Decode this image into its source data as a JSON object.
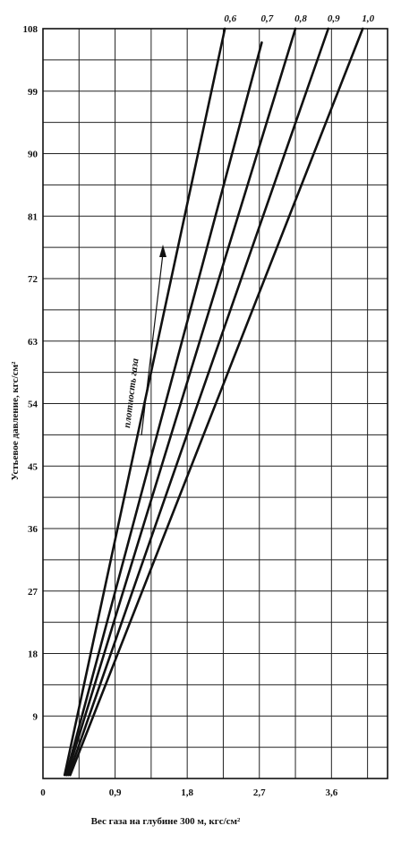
{
  "chart_data": {
    "type": "line",
    "title": "",
    "xlabel": "Вес  газа  на глубине 300 м, кгс/см²",
    "ylabel": "Устьевое давление, кгс/см²",
    "xlim": [
      0,
      4.3
    ],
    "ylim": [
      0,
      108
    ],
    "x_ticks": [
      "0",
      "0,9",
      "1,8",
      "2,7",
      "3,6"
    ],
    "x_tick_values": [
      0,
      0.9,
      1.8,
      2.7,
      3.6
    ],
    "y_ticks": [
      "9",
      "18",
      "27",
      "36",
      "45",
      "54",
      "63",
      "72",
      "81",
      "90",
      "99",
      "108"
    ],
    "y_tick_values": [
      9,
      18,
      27,
      36,
      45,
      54,
      63,
      72,
      81,
      90,
      99,
      108
    ],
    "grid": true,
    "annotation": "плотность газа",
    "series": [
      {
        "name": "0,6",
        "x": [
          0.27,
          2.27
        ],
        "y": [
          0.5,
          108
        ]
      },
      {
        "name": "0,7",
        "x": [
          0.29,
          2.73
        ],
        "y": [
          0.5,
          106
        ]
      },
      {
        "name": "0,8",
        "x": [
          0.3,
          3.15
        ],
        "y": [
          0.5,
          108
        ]
      },
      {
        "name": "0,9",
        "x": [
          0.32,
          3.56
        ],
        "y": [
          0.5,
          108
        ]
      },
      {
        "name": "1,0",
        "x": [
          0.34,
          3.99
        ],
        "y": [
          0.5,
          108
        ]
      }
    ]
  }
}
